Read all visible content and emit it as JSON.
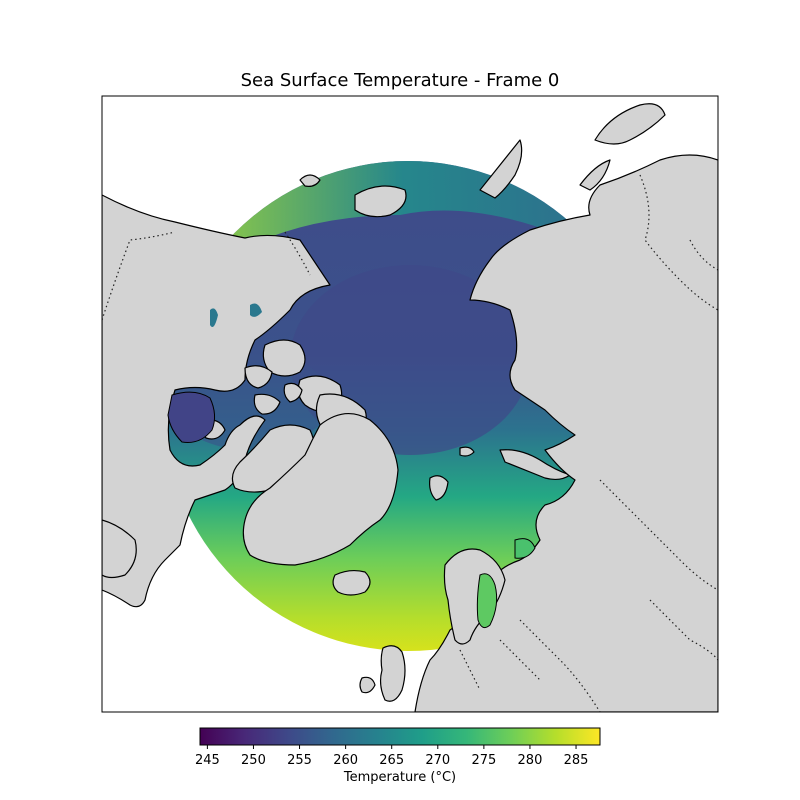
{
  "title": "Sea Surface Temperature - Frame 0",
  "colorbar": {
    "label": "Temperature (°C)",
    "min": 244.2,
    "max": 287.6,
    "ticks": [
      245,
      250,
      255,
      260,
      265,
      270,
      275,
      280,
      285
    ],
    "colormap": "viridis",
    "colormap_stops": [
      "#440154",
      "#482878",
      "#3e4989",
      "#31688e",
      "#26828e",
      "#1f9e89",
      "#35b779",
      "#6ece58",
      "#b5de2b",
      "#fde725"
    ]
  },
  "map": {
    "projection": "north-polar-stereographic",
    "land_color": "#d3d3d3",
    "ocean_background": "#ffffff",
    "coastline_color": "#000000",
    "borders": "dotted"
  }
}
